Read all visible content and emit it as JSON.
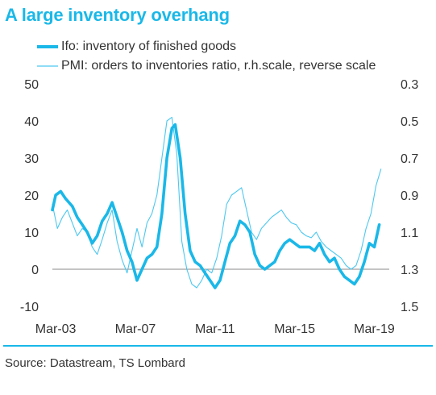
{
  "title": "A large inventory overhang",
  "source": "Source: Datastream, TS Lombard",
  "colors": {
    "ifo": "#1ab8e8",
    "pmi": "#4cc8f0",
    "title": "#1ab8e8",
    "zero_line": "#888888"
  },
  "chart_data": {
    "type": "line",
    "title": "A large inventory overhang",
    "x_tick_labels": [
      "Mar-03",
      "Mar-07",
      "Mar-11",
      "Mar-15",
      "Mar-19"
    ],
    "x_range": [
      "2003-01",
      "2019-12"
    ],
    "y_left": {
      "ticks": [
        50,
        40,
        30,
        20,
        10,
        0,
        -10
      ],
      "ylim": [
        -10,
        50
      ]
    },
    "y_right": {
      "ticks": [
        0.3,
        0.5,
        0.7,
        0.9,
        1.1,
        1.3,
        1.5
      ],
      "ylim": [
        0.3,
        1.5
      ],
      "reverse": true
    },
    "zero_line": 0,
    "series": [
      {
        "name": "Ifo: inventory of finished goods",
        "axis": "left",
        "points": [
          [
            "2003-01",
            16
          ],
          [
            "2003-03",
            20
          ],
          [
            "2003-06",
            21
          ],
          [
            "2003-09",
            19
          ],
          [
            "2004-01",
            17
          ],
          [
            "2004-04",
            14
          ],
          [
            "2004-07",
            12
          ],
          [
            "2004-10",
            10
          ],
          [
            "2005-01",
            7
          ],
          [
            "2005-04",
            9
          ],
          [
            "2005-07",
            13
          ],
          [
            "2005-10",
            15
          ],
          [
            "2006-01",
            18
          ],
          [
            "2006-04",
            14
          ],
          [
            "2006-07",
            10
          ],
          [
            "2006-10",
            5
          ],
          [
            "2007-01",
            2
          ],
          [
            "2007-04",
            -3
          ],
          [
            "2007-07",
            0
          ],
          [
            "2007-10",
            3
          ],
          [
            "2008-01",
            4
          ],
          [
            "2008-04",
            6
          ],
          [
            "2008-07",
            15
          ],
          [
            "2008-10",
            30
          ],
          [
            "2009-01",
            38
          ],
          [
            "2009-03",
            39
          ],
          [
            "2009-06",
            30
          ],
          [
            "2009-09",
            15
          ],
          [
            "2009-12",
            5
          ],
          [
            "2010-03",
            2
          ],
          [
            "2010-06",
            1
          ],
          [
            "2010-09",
            -1
          ],
          [
            "2010-12",
            -3
          ],
          [
            "2011-03",
            -5
          ],
          [
            "2011-06",
            -3
          ],
          [
            "2011-09",
            2
          ],
          [
            "2011-12",
            7
          ],
          [
            "2012-03",
            9
          ],
          [
            "2012-06",
            13
          ],
          [
            "2012-09",
            12
          ],
          [
            "2012-12",
            10
          ],
          [
            "2013-03",
            4
          ],
          [
            "2013-06",
            1
          ],
          [
            "2013-09",
            0
          ],
          [
            "2013-12",
            1
          ],
          [
            "2014-03",
            2
          ],
          [
            "2014-06",
            5
          ],
          [
            "2014-09",
            7
          ],
          [
            "2014-12",
            8
          ],
          [
            "2015-03",
            7
          ],
          [
            "2015-06",
            6
          ],
          [
            "2015-09",
            6
          ],
          [
            "2015-12",
            6
          ],
          [
            "2016-03",
            5
          ],
          [
            "2016-06",
            7
          ],
          [
            "2016-09",
            4
          ],
          [
            "2016-12",
            2
          ],
          [
            "2017-03",
            3
          ],
          [
            "2017-06",
            0
          ],
          [
            "2017-09",
            -2
          ],
          [
            "2017-12",
            -3
          ],
          [
            "2018-03",
            -4
          ],
          [
            "2018-06",
            -2
          ],
          [
            "2018-09",
            2
          ],
          [
            "2018-12",
            7
          ],
          [
            "2019-03",
            6
          ],
          [
            "2019-06",
            12
          ]
        ]
      },
      {
        "name": "PMI: orders to inventories ratio, r.h.scale, reverse scale",
        "axis": "right",
        "points": [
          [
            "2003-01",
            0.95
          ],
          [
            "2003-04",
            1.08
          ],
          [
            "2003-07",
            1.02
          ],
          [
            "2003-10",
            0.98
          ],
          [
            "2004-01",
            1.05
          ],
          [
            "2004-04",
            1.12
          ],
          [
            "2004-07",
            1.08
          ],
          [
            "2004-10",
            1.1
          ],
          [
            "2005-01",
            1.18
          ],
          [
            "2005-04",
            1.22
          ],
          [
            "2005-07",
            1.14
          ],
          [
            "2005-10",
            1.05
          ],
          [
            "2006-01",
            0.98
          ],
          [
            "2006-04",
            1.15
          ],
          [
            "2006-07",
            1.25
          ],
          [
            "2006-10",
            1.32
          ],
          [
            "2007-01",
            1.2
          ],
          [
            "2007-04",
            1.08
          ],
          [
            "2007-07",
            1.18
          ],
          [
            "2007-10",
            1.05
          ],
          [
            "2008-01",
            1.0
          ],
          [
            "2008-04",
            0.9
          ],
          [
            "2008-07",
            0.7
          ],
          [
            "2008-10",
            0.5
          ],
          [
            "2009-01",
            0.48
          ],
          [
            "2009-04",
            0.68
          ],
          [
            "2009-07",
            1.15
          ],
          [
            "2009-10",
            1.3
          ],
          [
            "2010-01",
            1.38
          ],
          [
            "2010-04",
            1.4
          ],
          [
            "2010-07",
            1.36
          ],
          [
            "2010-10",
            1.3
          ],
          [
            "2011-01",
            1.32
          ],
          [
            "2011-04",
            1.24
          ],
          [
            "2011-07",
            1.12
          ],
          [
            "2011-10",
            0.95
          ],
          [
            "2012-01",
            0.9
          ],
          [
            "2012-04",
            0.88
          ],
          [
            "2012-07",
            0.86
          ],
          [
            "2012-10",
            0.98
          ],
          [
            "2013-01",
            1.1
          ],
          [
            "2013-04",
            1.14
          ],
          [
            "2013-07",
            1.08
          ],
          [
            "2013-10",
            1.05
          ],
          [
            "2014-01",
            1.02
          ],
          [
            "2014-04",
            1.0
          ],
          [
            "2014-07",
            0.98
          ],
          [
            "2014-10",
            1.02
          ],
          [
            "2015-01",
            1.05
          ],
          [
            "2015-04",
            1.06
          ],
          [
            "2015-07",
            1.1
          ],
          [
            "2015-10",
            1.12
          ],
          [
            "2016-01",
            1.13
          ],
          [
            "2016-04",
            1.1
          ],
          [
            "2016-07",
            1.15
          ],
          [
            "2016-10",
            1.18
          ],
          [
            "2017-01",
            1.2
          ],
          [
            "2017-04",
            1.22
          ],
          [
            "2017-07",
            1.24
          ],
          [
            "2017-10",
            1.28
          ],
          [
            "2018-01",
            1.3
          ],
          [
            "2018-04",
            1.28
          ],
          [
            "2018-07",
            1.2
          ],
          [
            "2018-10",
            1.08
          ],
          [
            "2019-01",
            1.0
          ],
          [
            "2019-04",
            0.85
          ],
          [
            "2019-07",
            0.76
          ]
        ]
      }
    ]
  }
}
